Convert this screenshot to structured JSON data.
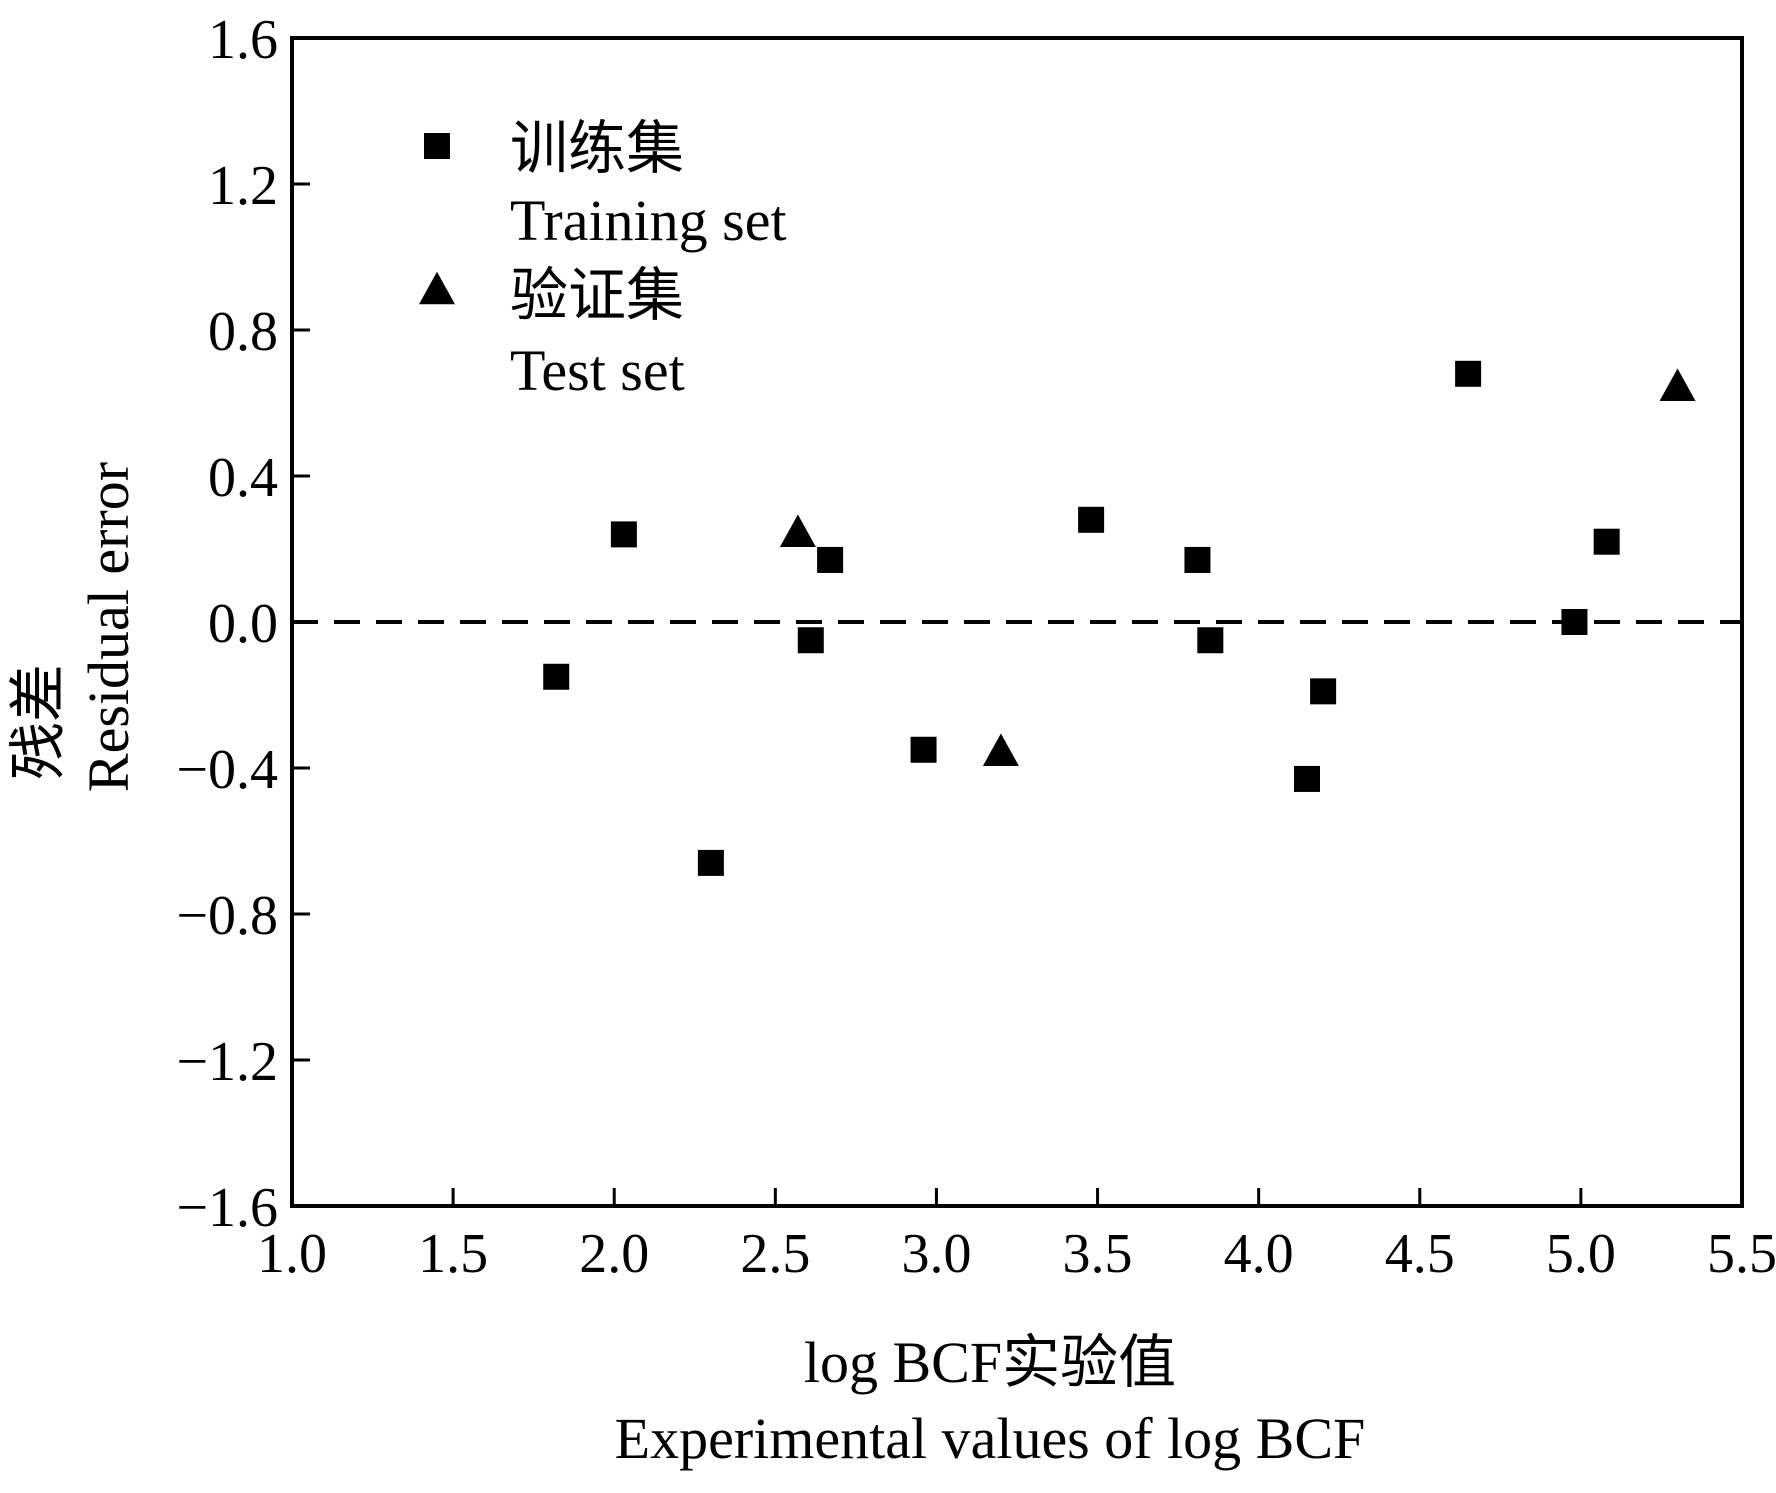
{
  "chart_data": {
    "type": "scatter",
    "xlabel_cn": "log BCF实验值",
    "xlabel_en": "Experimental values of log BCF",
    "ylabel_cn": "残差",
    "ylabel_en": "Residual error",
    "xlim": [
      1.0,
      5.5
    ],
    "ylim": [
      -1.6,
      1.6
    ],
    "xticks": [
      "1.0",
      "1.5",
      "2.0",
      "2.5",
      "3.0",
      "3.5",
      "4.0",
      "4.5",
      "5.0",
      "5.5"
    ],
    "yticks": [
      "1.6",
      "1.2",
      "0.8",
      "0.4",
      "0.0",
      "−0.4",
      "−0.8",
      "−1.2",
      "−1.6"
    ],
    "xtick_values": [
      1.0,
      1.5,
      2.0,
      2.5,
      3.0,
      3.5,
      4.0,
      4.5,
      5.0,
      5.5
    ],
    "ytick_values": [
      1.6,
      1.2,
      0.8,
      0.4,
      0.0,
      -0.4,
      -0.8,
      -1.2,
      -1.6
    ],
    "reference_line": {
      "y": 0.0,
      "style": "dashed"
    },
    "grid": false,
    "legend_position": "top-left",
    "series": [
      {
        "name_cn": "训练集",
        "name_en": "Training set",
        "marker": "square",
        "color": "#000000",
        "points": [
          {
            "x": 1.82,
            "y": -0.15
          },
          {
            "x": 2.03,
            "y": 0.24
          },
          {
            "x": 2.3,
            "y": -0.66
          },
          {
            "x": 2.61,
            "y": -0.05
          },
          {
            "x": 2.67,
            "y": 0.17
          },
          {
            "x": 2.96,
            "y": -0.35
          },
          {
            "x": 3.48,
            "y": 0.28
          },
          {
            "x": 3.81,
            "y": 0.17
          },
          {
            "x": 3.85,
            "y": -0.05
          },
          {
            "x": 4.15,
            "y": -0.43
          },
          {
            "x": 4.2,
            "y": -0.19
          },
          {
            "x": 4.65,
            "y": 0.68
          },
          {
            "x": 4.98,
            "y": 0.0
          },
          {
            "x": 5.08,
            "y": 0.22
          }
        ]
      },
      {
        "name_cn": "验证集",
        "name_en": "Test set",
        "marker": "triangle",
        "color": "#000000",
        "points": [
          {
            "x": 2.57,
            "y": 0.25
          },
          {
            "x": 3.2,
            "y": -0.35
          },
          {
            "x": 5.3,
            "y": 0.65
          }
        ]
      }
    ]
  }
}
